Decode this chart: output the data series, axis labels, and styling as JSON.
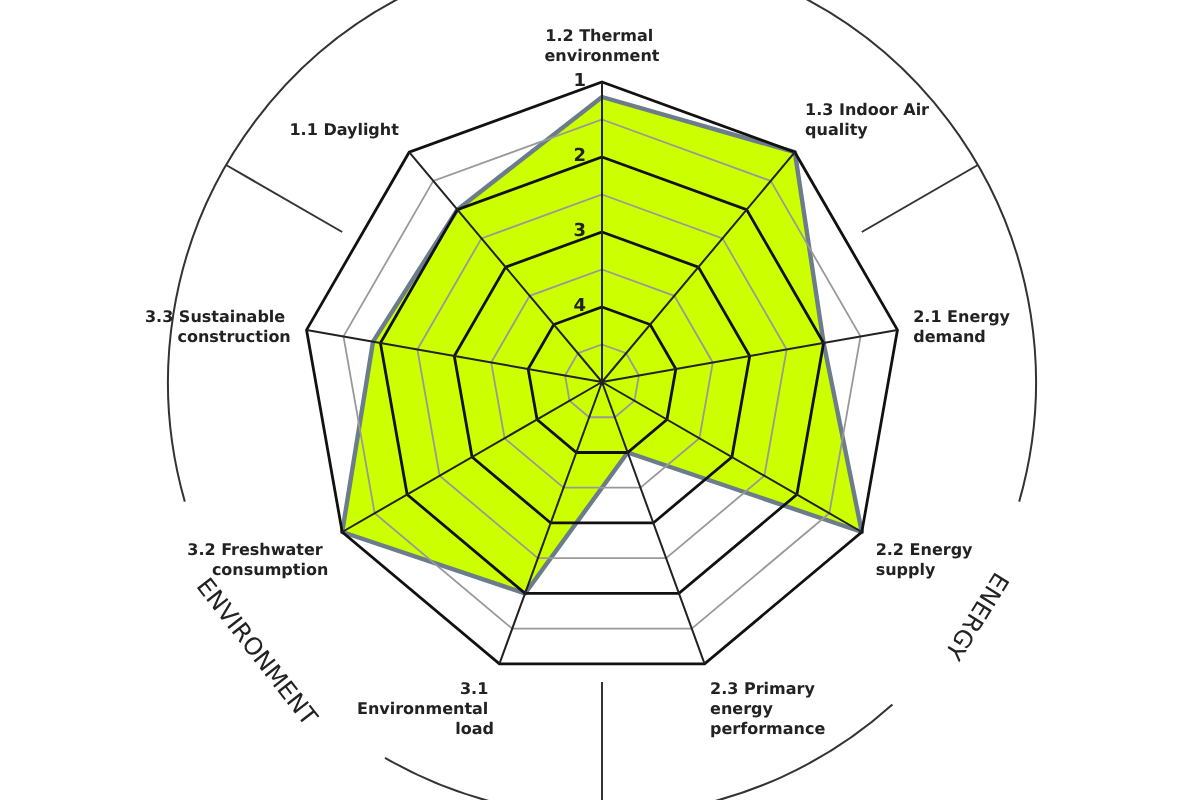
{
  "chart_data": {
    "type": "radar",
    "categories": [
      "1.2 Thermal environment",
      "1.3 Indoor Air quality",
      "2.1 Energy demand",
      "2.2 Energy supply",
      "2.3 Primary energy performance",
      "3.1 Environmental load",
      "3.2 Freshwater consumption",
      "3.3 Sustainable construction",
      "1.1 Daylight"
    ],
    "series": [
      {
        "color": "#ccff00",
        "values": [
          1.2,
          1,
          2,
          1,
          4,
          2,
          1,
          1.9,
          2
        ]
      }
    ],
    "ylim": [
      5,
      1
    ],
    "yticks": [
      4,
      3,
      2,
      1
    ],
    "grid": true,
    "marker": "none",
    "annotations": [
      "ENERGY",
      "ENVIRONMENT"
    ]
  }
}
